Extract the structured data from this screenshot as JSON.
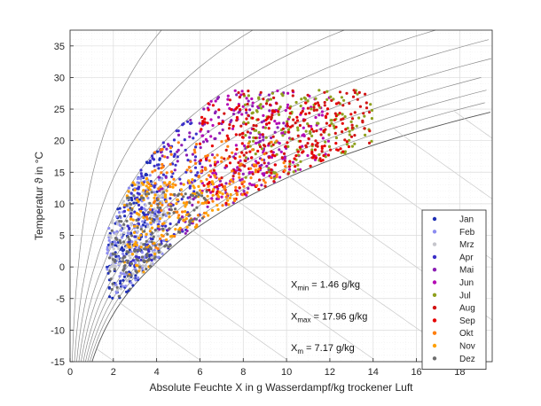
{
  "chart_data": {
    "type": "scatter",
    "title": "",
    "xlabel": "Absolute Feuchte X in g Wasserdampf/kg trockener Luft",
    "ylabel": "Temperatur ϑ in °C",
    "xlim": [
      0,
      19.5
    ],
    "ylim": [
      -15,
      37.5
    ],
    "x_ticks": [
      0,
      2,
      4,
      6,
      8,
      10,
      12,
      14,
      16,
      18
    ],
    "y_ticks": [
      -15,
      -10,
      -5,
      0,
      5,
      10,
      15,
      20,
      25,
      30,
      35
    ],
    "grid": true,
    "legend_position": "bottom-right",
    "series": [
      {
        "name": "Jan",
        "color": "#1f2fb4",
        "x_range": [
          1.7,
          4.2
        ],
        "y_range": [
          -5,
          20
        ]
      },
      {
        "name": "Feb",
        "color": "#8c8cf0",
        "x_range": [
          1.7,
          4.5
        ],
        "y_range": [
          -5,
          15
        ]
      },
      {
        "name": "Mrz",
        "color": "#c6c6cc",
        "x_range": [
          1.8,
          4.5
        ],
        "y_range": [
          -4,
          14
        ]
      },
      {
        "name": "Apr",
        "color": "#3c30c8",
        "x_range": [
          2.5,
          6.0
        ],
        "y_range": [
          0,
          24
        ]
      },
      {
        "name": "Mai",
        "color": "#8c1fb4",
        "x_range": [
          4.0,
          10.0
        ],
        "y_range": [
          5,
          28
        ]
      },
      {
        "name": "Jun",
        "color": "#b40ab4",
        "x_range": [
          6.0,
          12.0
        ],
        "y_range": [
          10,
          28
        ]
      },
      {
        "name": "Jul",
        "color": "#8fa01e",
        "x_range": [
          8.0,
          14.0
        ],
        "y_range": [
          14,
          28
        ]
      },
      {
        "name": "Aug",
        "color": "#d21414",
        "x_range": [
          7.0,
          14.0
        ],
        "y_range": [
          12,
          28
        ]
      },
      {
        "name": "Sep",
        "color": "#e60000",
        "x_range": [
          6.0,
          13.0
        ],
        "y_range": [
          8,
          26
        ]
      },
      {
        "name": "Okt",
        "color": "#ff7f0e",
        "x_range": [
          3.5,
          10.0
        ],
        "y_range": [
          0,
          20
        ]
      },
      {
        "name": "Nov",
        "color": "#ffa000",
        "x_range": [
          2.5,
          7.5
        ],
        "y_range": [
          -3,
          14
        ]
      },
      {
        "name": "Dez",
        "color": "#6e6e6e",
        "x_range": [
          1.8,
          6.5
        ],
        "y_range": [
          -5,
          12
        ]
      }
    ],
    "annotations": [
      {
        "base": "X",
        "sub": "min",
        "text": " = 1.46 g/kg",
        "x": 10.2,
        "y": -3.3
      },
      {
        "base": "X",
        "sub": "max",
        "text": " = 17.96 g/kg",
        "x": 10.2,
        "y": -8.3
      },
      {
        "base": "X",
        "sub": "m",
        "text": " = 7.17 g/kg",
        "x": 10.2,
        "y": -13.3
      }
    ]
  }
}
